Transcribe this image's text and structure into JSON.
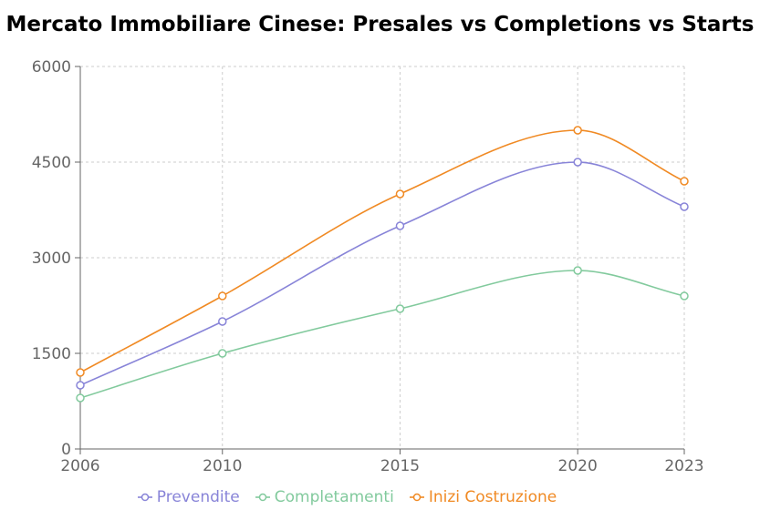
{
  "chart_data": {
    "type": "line",
    "title": "Mercato Immobiliare Cinese: Presales vs Completions vs Starts",
    "x": [
      "2006",
      "2010",
      "2015",
      "2020",
      "2023"
    ],
    "x_values": [
      2006,
      2010,
      2015,
      2020,
      2023
    ],
    "ylim": [
      0,
      6000
    ],
    "yticks": [
      0,
      1500,
      3000,
      4500,
      6000
    ],
    "grid": true,
    "legend_position": "bottom",
    "series": [
      {
        "name": "Prevendite",
        "color": "#8884d8",
        "values": [
          1000,
          2000,
          3500,
          4500,
          3800
        ]
      },
      {
        "name": "Completamenti",
        "color": "#82ca9d",
        "values": [
          800,
          1500,
          2200,
          2800,
          2400
        ]
      },
      {
        "name": "Inizi Costruzione",
        "color": "#f08a24",
        "values": [
          1200,
          2400,
          4000,
          5000,
          4200
        ]
      }
    ]
  }
}
